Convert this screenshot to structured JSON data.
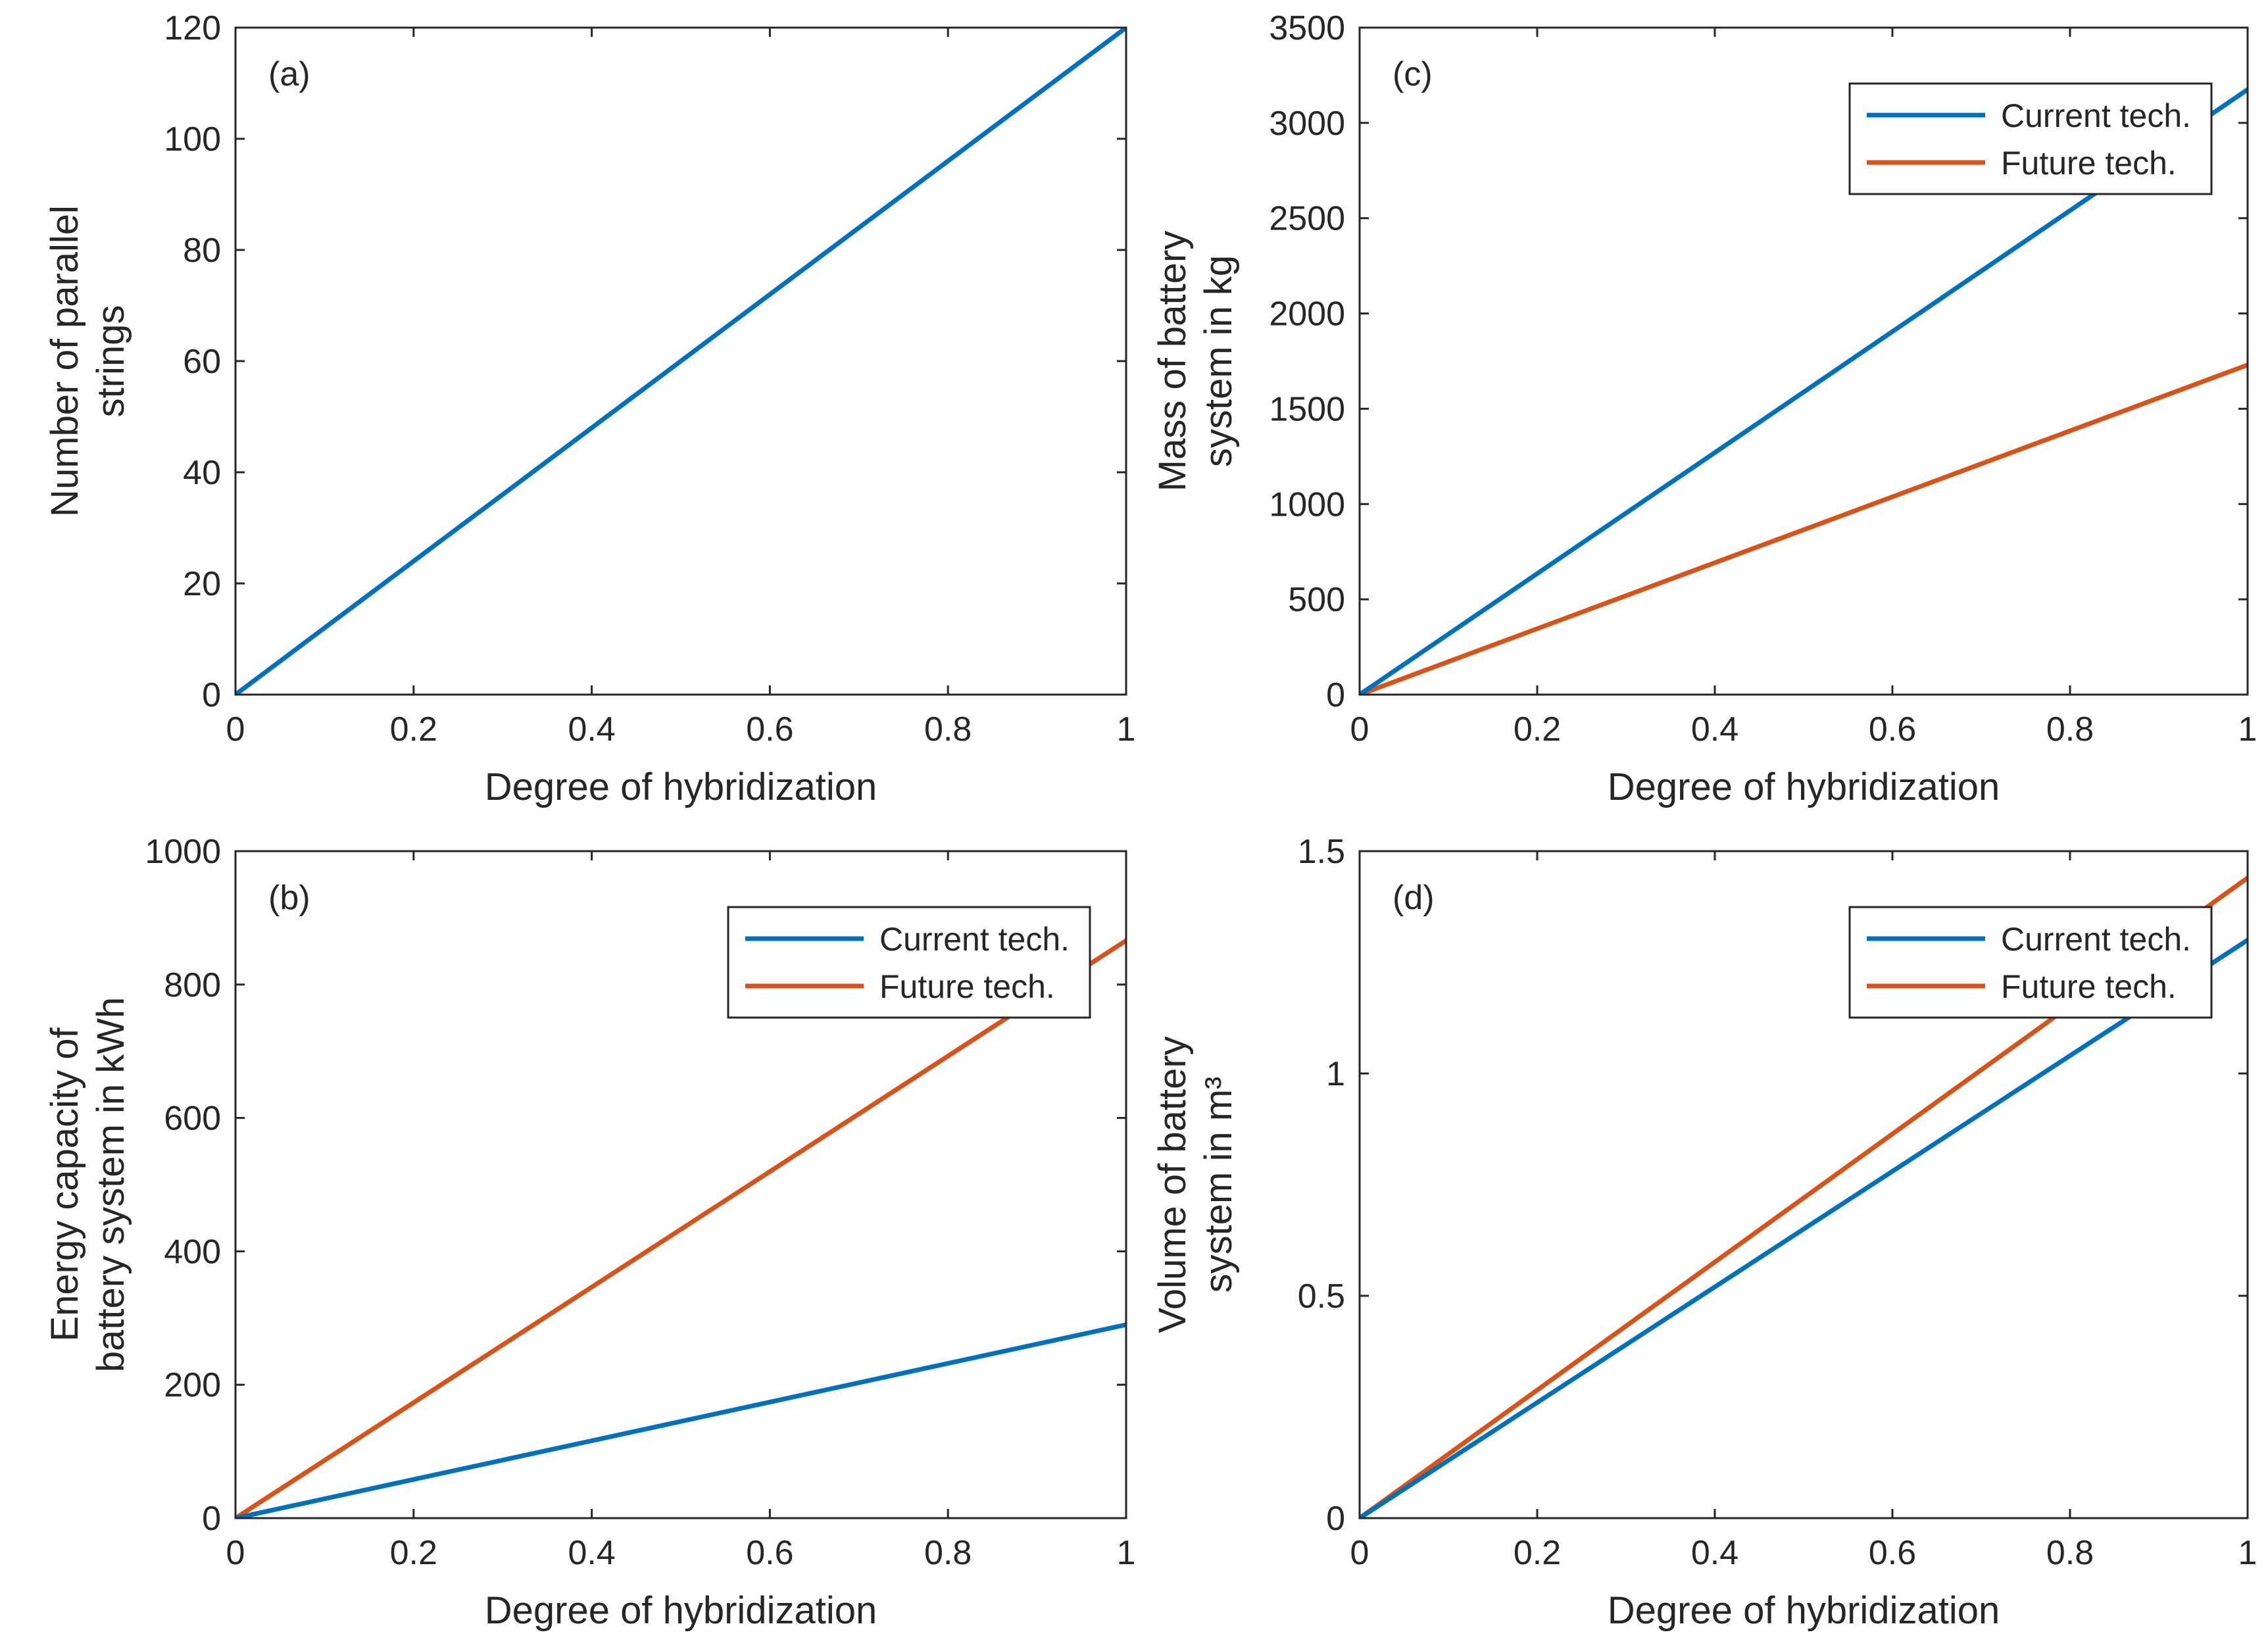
{
  "colors": {
    "current": "#0072BD",
    "future": "#D95319",
    "axis": "#262626"
  },
  "chart_data": [
    {
      "id": "a",
      "type": "line",
      "panel_label": "(a)",
      "xlabel": "Degree of hybridization",
      "ylabel_lines": [
        "Number of parallel",
        "strings"
      ],
      "xlim": [
        0,
        1
      ],
      "ylim": [
        0,
        120
      ],
      "xticks": [
        0,
        0.2,
        0.4,
        0.6,
        0.8,
        1
      ],
      "xtick_labels": [
        "0",
        "0.2",
        "0.4",
        "0.6",
        "0.8",
        "1"
      ],
      "yticks": [
        0,
        20,
        40,
        60,
        80,
        100,
        120
      ],
      "ytick_labels": [
        "0",
        "20",
        "40",
        "60",
        "80",
        "100",
        "120"
      ],
      "legend": null,
      "series": [
        {
          "name": "Number of parallel strings",
          "color": "#0072BD",
          "x": [
            0,
            1
          ],
          "y": [
            0,
            120
          ]
        }
      ]
    },
    {
      "id": "c",
      "type": "line",
      "panel_label": "(c)",
      "xlabel": "Degree of hybridization",
      "ylabel_lines": [
        "Mass of battery",
        "system in kg"
      ],
      "xlim": [
        0,
        1
      ],
      "ylim": [
        0,
        3500
      ],
      "xticks": [
        0,
        0.2,
        0.4,
        0.6,
        0.8,
        1
      ],
      "xtick_labels": [
        "0",
        "0.2",
        "0.4",
        "0.6",
        "0.8",
        "1"
      ],
      "yticks": [
        0,
        500,
        1000,
        1500,
        2000,
        2500,
        3000,
        3500
      ],
      "ytick_labels": [
        "0",
        "500",
        "1000",
        "1500",
        "2000",
        "2500",
        "3000",
        "3500"
      ],
      "legend": {
        "position": "top-right",
        "entries": [
          "Current tech.",
          "Future tech."
        ]
      },
      "series": [
        {
          "name": "Current tech.",
          "color": "#0072BD",
          "x": [
            0,
            1
          ],
          "y": [
            0,
            3175
          ]
        },
        {
          "name": "Future tech.",
          "color": "#D95319",
          "x": [
            0,
            1
          ],
          "y": [
            0,
            1730
          ]
        }
      ]
    },
    {
      "id": "b",
      "type": "line",
      "panel_label": "(b)",
      "xlabel": "Degree of hybridization",
      "ylabel_lines": [
        "Energy capacity of",
        "battery system in kWh"
      ],
      "xlim": [
        0,
        1
      ],
      "ylim": [
        0,
        1000
      ],
      "xticks": [
        0,
        0.2,
        0.4,
        0.6,
        0.8,
        1
      ],
      "xtick_labels": [
        "0",
        "0.2",
        "0.4",
        "0.6",
        "0.8",
        "1"
      ],
      "yticks": [
        0,
        200,
        400,
        600,
        800,
        1000
      ],
      "ytick_labels": [
        "0",
        "200",
        "400",
        "600",
        "800",
        "1000"
      ],
      "legend": {
        "position": "top-right",
        "entries": [
          "Current tech.",
          "Future tech."
        ]
      },
      "series": [
        {
          "name": "Current tech.",
          "color": "#0072BD",
          "x": [
            0,
            1
          ],
          "y": [
            0,
            290
          ]
        },
        {
          "name": "Future tech.",
          "color": "#D95319",
          "x": [
            0,
            1
          ],
          "y": [
            0,
            866
          ]
        }
      ]
    },
    {
      "id": "d",
      "type": "line",
      "panel_label": "(d)",
      "xlabel": "Degree of hybridization",
      "ylabel_lines": [
        "Volume of battery",
        "system in m³"
      ],
      "xlim": [
        0,
        1
      ],
      "ylim": [
        0,
        1.5
      ],
      "xticks": [
        0,
        0.2,
        0.4,
        0.6,
        0.8,
        1
      ],
      "xtick_labels": [
        "0",
        "0.2",
        "0.4",
        "0.6",
        "0.8",
        "1"
      ],
      "yticks": [
        0,
        0.5,
        1,
        1.5
      ],
      "ytick_labels": [
        "0",
        "0.5",
        "1",
        "1.5"
      ],
      "legend": {
        "position": "top-right",
        "entries": [
          "Current tech.",
          "Future tech."
        ]
      },
      "series": [
        {
          "name": "Current tech.",
          "color": "#0072BD",
          "x": [
            0,
            1
          ],
          "y": [
            0,
            1.3
          ]
        },
        {
          "name": "Future tech.",
          "color": "#D95319",
          "x": [
            0,
            1
          ],
          "y": [
            0,
            1.44
          ]
        }
      ]
    }
  ]
}
